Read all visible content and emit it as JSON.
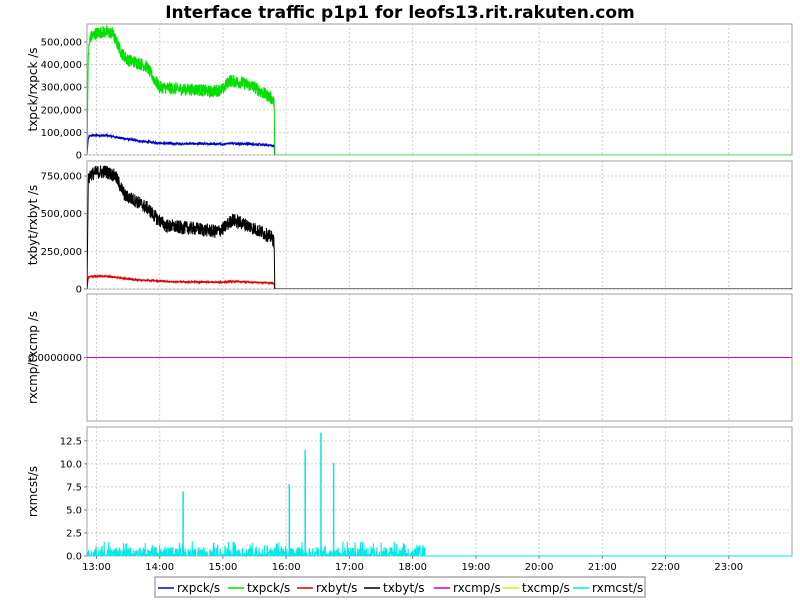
{
  "chart_data": {
    "type": "line",
    "title": "Interface traffic p1p1 for leofs13.rit.rakuten.com",
    "x_ticks": [
      "13:00",
      "14:00",
      "15:00",
      "16:00",
      "17:00",
      "18:00",
      "19:00",
      "20:00",
      "21:00",
      "22:00",
      "23:00"
    ],
    "legend": [
      {
        "name": "rxpck/s",
        "color": "#0000c8"
      },
      {
        "name": "txpck/s",
        "color": "#00e000"
      },
      {
        "name": "rxbyt/s",
        "color": "#e00000"
      },
      {
        "name": "txbyt/s",
        "color": "#000000"
      },
      {
        "name": "rxcmp/s",
        "color": "#c800c8"
      },
      {
        "name": "txcmp/s",
        "color": "#e8e800"
      },
      {
        "name": "rxmcst/s",
        "color": "#00e8e8"
      }
    ],
    "panels": [
      {
        "ylabel": "txpck/rxpck /s",
        "ylim": [
          0,
          580000
        ],
        "yticks": [
          {
            "v": 0,
            "label": "0"
          },
          {
            "v": 100000,
            "label": "100,000"
          },
          {
            "v": 200000,
            "label": "200,000"
          },
          {
            "v": 300000,
            "label": "300,000"
          },
          {
            "v": 400000,
            "label": "400,000"
          },
          {
            "v": 500000,
            "label": "500,000"
          }
        ],
        "series": [
          {
            "name": "txpck/s",
            "color": "#00e000",
            "noise": 28000,
            "x": [
              12.85,
              12.87,
              12.9,
              13.0,
              13.1,
              13.25,
              13.4,
              13.5,
              13.65,
              13.8,
              13.9,
              14.0,
              14.2,
              14.4,
              14.6,
              14.8,
              15.0,
              15.1,
              15.3,
              15.5,
              15.6,
              15.78,
              15.81,
              15.82,
              24.0
            ],
            "y": [
              0,
              450000,
              520000,
              540000,
              545000,
              540000,
              450000,
              420000,
              410000,
              390000,
              340000,
              300000,
              295000,
              290000,
              290000,
              280000,
              290000,
              330000,
              320000,
              300000,
              280000,
              250000,
              230000,
              0,
              0
            ]
          },
          {
            "name": "rxpck/s",
            "color": "#0000c8",
            "noise": 5000,
            "x": [
              12.85,
              12.87,
              12.9,
              13.0,
              13.2,
              13.4,
              13.6,
              13.9,
              14.2,
              14.6,
              15.0,
              15.1,
              15.5,
              15.78,
              15.81,
              15.82,
              24.0
            ],
            "y": [
              0,
              75000,
              85000,
              88000,
              85000,
              75000,
              65000,
              55000,
              50000,
              50000,
              48000,
              52000,
              48000,
              42000,
              40000,
              0,
              0
            ]
          }
        ]
      },
      {
        "ylabel": "txbyt/rxbyt /s",
        "ylim": [
          0,
          850000
        ],
        "yticks": [
          {
            "v": 0,
            "label": "0"
          },
          {
            "v": 250000,
            "label": "250,000"
          },
          {
            "v": 500000,
            "label": "500,000"
          },
          {
            "v": 750000,
            "label": "750,000"
          }
        ],
        "series": [
          {
            "name": "txbyt/s",
            "color": "#000000",
            "noise": 45000,
            "x": [
              12.85,
              12.87,
              12.9,
              13.0,
              13.15,
              13.3,
              13.45,
              13.6,
              13.8,
              13.95,
              14.1,
              14.3,
              14.6,
              14.9,
              15.0,
              15.15,
              15.4,
              15.6,
              15.78,
              15.81,
              15.82,
              24.0
            ],
            "y": [
              0,
              720000,
              760000,
              775000,
              780000,
              750000,
              620000,
              590000,
              540000,
              470000,
              420000,
              410000,
              400000,
              380000,
              400000,
              460000,
              420000,
              380000,
              340000,
              310000,
              0,
              0
            ]
          },
          {
            "name": "rxbyt/s",
            "color": "#e00000",
            "noise": 5000,
            "x": [
              12.85,
              12.87,
              12.9,
              13.0,
              13.2,
              13.4,
              13.6,
              13.9,
              14.2,
              14.6,
              15.0,
              15.1,
              15.5,
              15.78,
              15.81,
              15.82,
              24.0
            ],
            "y": [
              0,
              75000,
              82000,
              86000,
              82000,
              72000,
              62000,
              55000,
              48000,
              46000,
              45000,
              50000,
              45000,
              40000,
              38000,
              0,
              0
            ]
          }
        ]
      },
      {
        "ylabel": "rxcmp/txcmp /s",
        "ylim": [
          -1,
          1
        ],
        "yticks": [
          {
            "v": 0,
            "label": "0.0000000"
          }
        ],
        "series": [
          {
            "name": "rxcmp/s",
            "color": "#c800c8",
            "noise": 0,
            "x": [
              12.85,
              24.0
            ],
            "y": [
              0,
              0
            ]
          },
          {
            "name": "txcmp/s",
            "color": "#e8e800",
            "noise": 0,
            "x": [
              12.85,
              24.0
            ],
            "y": [
              0,
              0
            ]
          }
        ]
      },
      {
        "ylabel": "rxmcst/s",
        "ylim": [
          0,
          14
        ],
        "yticks": [
          {
            "v": 0,
            "label": "0.0"
          },
          {
            "v": 2.5,
            "label": "2.5"
          },
          {
            "v": 5,
            "label": "5.0"
          },
          {
            "v": 7.5,
            "label": "7.5"
          },
          {
            "v": 10,
            "label": "10.0"
          },
          {
            "v": 12.5,
            "label": "12.5"
          }
        ],
        "series": [
          {
            "name": "rxmcst/s",
            "color": "#00e8e8",
            "noise": 0,
            "spiky": true,
            "baseline_range": [
              12.85,
              18.2
            ],
            "baseline_max": 1.6,
            "spikes": [
              {
                "x": 14.37,
                "y": 7.0
              },
              {
                "x": 16.05,
                "y": 7.8
              },
              {
                "x": 16.3,
                "y": 11.5
              },
              {
                "x": 16.55,
                "y": 13.4
              },
              {
                "x": 16.75,
                "y": 10.1
              }
            ],
            "x": [],
            "y": []
          }
        ]
      }
    ]
  }
}
